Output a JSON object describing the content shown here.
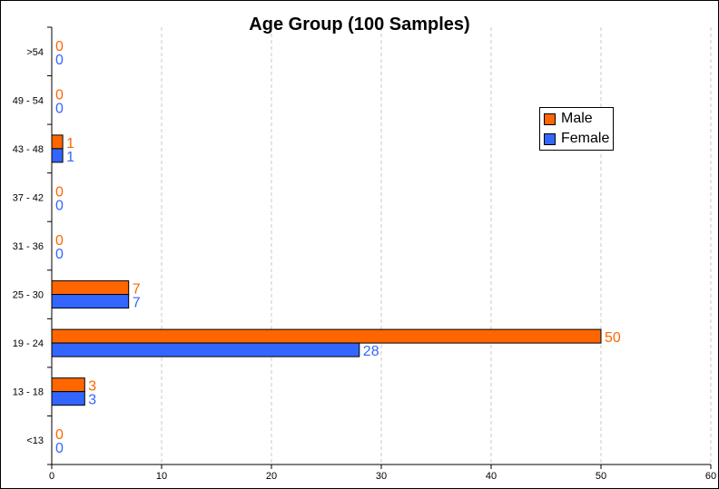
{
  "colors": {
    "male": "#ff6600",
    "female": "#3366ff",
    "grid": "#c8c8c8",
    "axis": "#000000"
  },
  "legend_labels": [
    "Male",
    "Female"
  ],
  "chart_data": {
    "type": "bar",
    "orientation": "horizontal",
    "title": "Age Group (100 Samples)",
    "xlabel": "",
    "ylabel": "",
    "xlim": [
      0,
      60
    ],
    "x_ticks": [
      "0",
      "10",
      "20",
      "30",
      "40",
      "50",
      "60"
    ],
    "grid": "vertical dashed",
    "legend_position": "top-right",
    "categories": [
      ">54",
      "49 - 54",
      "43 - 48",
      "37 - 42",
      "31 - 36",
      "25 - 30",
      "19 - 24",
      "13 - 18",
      "<13"
    ],
    "series": [
      {
        "name": "Male",
        "color": "#ff6600",
        "values": [
          0,
          0,
          1,
          0,
          0,
          7,
          50,
          3,
          0
        ]
      },
      {
        "name": "Female",
        "color": "#3366ff",
        "values": [
          0,
          0,
          1,
          0,
          0,
          7,
          28,
          3,
          0
        ]
      }
    ]
  }
}
